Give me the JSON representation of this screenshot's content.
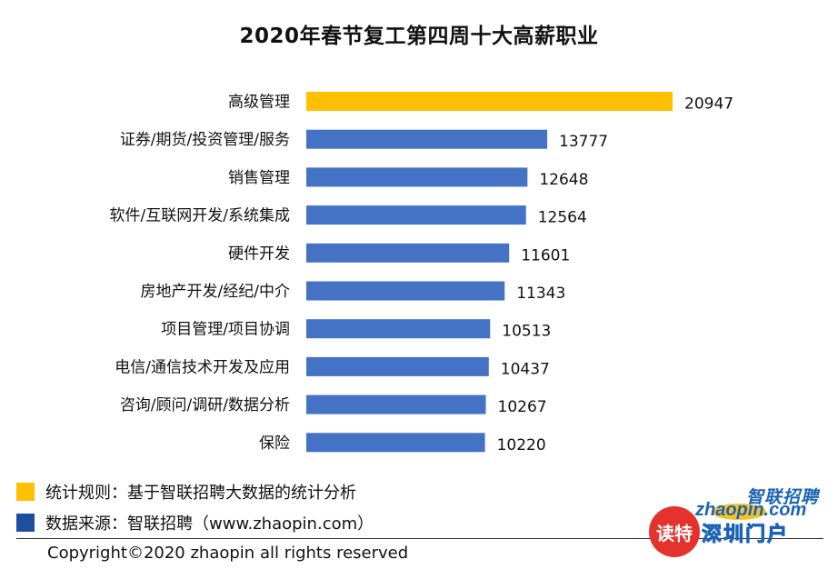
{
  "chart_data": {
    "type": "bar",
    "orientation": "horizontal",
    "title": "2020年春节复工第四周十大高薪职业",
    "categories": [
      "高级管理",
      "证券/期货/投资管理/服务",
      "销售管理",
      "软件/互联网开发/系统集成",
      "硬件开发",
      "房地产开发/经纪/中介",
      "项目管理/项目协调",
      "电信/通信技术开发及应用",
      "咨询/顾问/调研/数据分析",
      "保险"
    ],
    "values": [
      20947,
      13777,
      12648,
      12564,
      11601,
      11343,
      10513,
      10437,
      10267,
      10220
    ],
    "value_labels": [
      "20947",
      "13777",
      "12648",
      "12564",
      "11601",
      "11343",
      "10513",
      "10437",
      "10267",
      "10220"
    ],
    "highlight_color": "#ffc000",
    "bar_color": "#4472c4",
    "grid": false,
    "xlim": [
      0,
      20947
    ]
  },
  "legend": {
    "rule": "统计规则：基于智联招聘大数据的统计分析",
    "source": "数据来源：智联招聘（www.zhaopin.com）",
    "rule_color": "#ffc000",
    "source_color": "#1f4e9e"
  },
  "footer": {
    "copyright": "Copyright©2020 zhaopin all rights reserved"
  },
  "logos": {
    "zhaopin_cn": "智联招聘",
    "zhaopin_en": "zhaopin.com",
    "dute": "读特",
    "city": "深圳门户"
  }
}
